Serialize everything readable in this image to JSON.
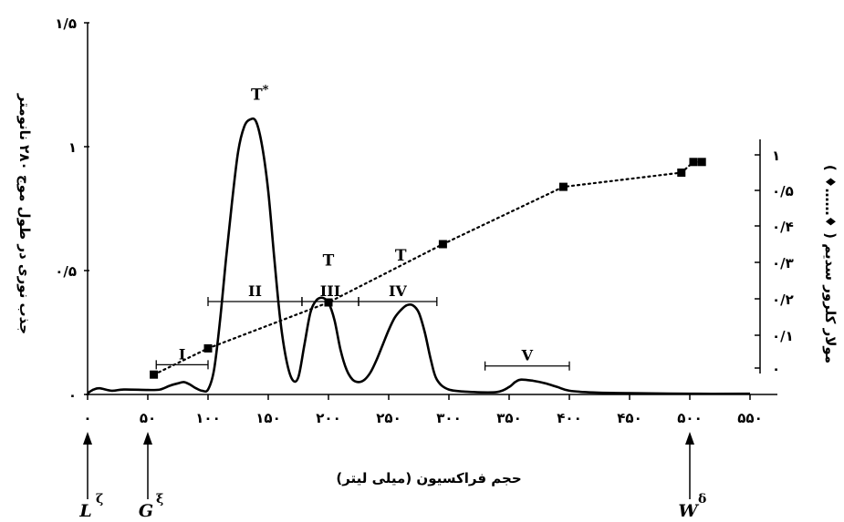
{
  "chart_data": {
    "type": "line",
    "xlabel": "حجم فراکسیون (میلی لیتر)",
    "ylabel": "جذب نوری در طول موج ۲۸۰ نانومتر",
    "y2label": "مولار کلرور سدیم ( ♦……♦ )",
    "xlim": [
      0,
      550
    ],
    "ylim": [
      0,
      1.5
    ],
    "y2lim": [
      0,
      1
    ],
    "x_ticks": [
      0,
      50,
      100,
      150,
      200,
      250,
      300,
      350,
      400,
      450,
      500,
      550
    ],
    "x_tick_labels": [
      "۰",
      "۵۰",
      "۱۰۰",
      "۱۵۰",
      "۲۰۰",
      "۲۵۰",
      "۳۰۰",
      "۳۵۰",
      "۴۰۰",
      "۴۵۰",
      "۵۰۰",
      "۵۵۰"
    ],
    "y_ticks": [
      0,
      0.5,
      1,
      1.5
    ],
    "y_tick_labels": [
      "۰",
      "۰/۵",
      "۱",
      "۱/۵"
    ],
    "y2_ticks": [
      0,
      0.1,
      0.2,
      0.3,
      0.4,
      0.5,
      1
    ],
    "y2_tick_labels": [
      "۰",
      "۰/۱",
      "۰/۲",
      "۰/۳",
      "۰/۴",
      "۰/۵",
      "۱"
    ],
    "grid": false,
    "legend": "none",
    "series": [
      {
        "id": "absorbance",
        "style": "solid",
        "color": "#000000",
        "axis": "left",
        "x": [
          0,
          5,
          10,
          20,
          30,
          50,
          60,
          68,
          75,
          80,
          85,
          90,
          95,
          100,
          105,
          110,
          115,
          120,
          125,
          130,
          135,
          140,
          145,
          150,
          155,
          160,
          165,
          170,
          175,
          180,
          185,
          190,
          195,
          200,
          205,
          210,
          215,
          220,
          225,
          230,
          235,
          240,
          245,
          250,
          255,
          260,
          265,
          270,
          275,
          280,
          285,
          290,
          300,
          320,
          340,
          350,
          355,
          360,
          370,
          380,
          390,
          400,
          420,
          450,
          500,
          550
        ],
        "y": [
          0.005,
          0.02,
          0.025,
          0.015,
          0.02,
          0.018,
          0.02,
          0.035,
          0.045,
          0.05,
          0.04,
          0.025,
          0.015,
          0.02,
          0.1,
          0.3,
          0.55,
          0.78,
          0.98,
          1.08,
          1.11,
          1.1,
          1.0,
          0.82,
          0.55,
          0.3,
          0.14,
          0.06,
          0.07,
          0.2,
          0.33,
          0.38,
          0.39,
          0.37,
          0.3,
          0.18,
          0.1,
          0.06,
          0.05,
          0.06,
          0.09,
          0.14,
          0.2,
          0.26,
          0.31,
          0.34,
          0.36,
          0.36,
          0.33,
          0.25,
          0.14,
          0.06,
          0.02,
          0.01,
          0.01,
          0.03,
          0.05,
          0.06,
          0.055,
          0.045,
          0.03,
          0.015,
          0.008,
          0.005,
          0.003,
          0.003
        ]
      },
      {
        "id": "nacl",
        "style": "dotted",
        "color": "#000000",
        "axis": "right",
        "marker": "square",
        "x": [
          55,
          100,
          200,
          295,
          395,
          493,
          503,
          510
        ],
        "y": [
          -0.02,
          0.06,
          0.19,
          0.35,
          0.55,
          0.75,
          0.9,
          0.9
        ]
      }
    ],
    "fraction_bars": [
      {
        "label": "I",
        "x_start": 57,
        "x_end": 100,
        "y": 0.12
      },
      {
        "label": "II",
        "x_start": 100,
        "x_end": 178,
        "y": 0.375
      },
      {
        "label": "III",
        "x_start": 178,
        "x_end": 225,
        "y": 0.375
      },
      {
        "label": "IV",
        "x_start": 225,
        "x_end": 290,
        "y": 0.375
      },
      {
        "label": "V",
        "x_start": 330,
        "x_end": 400,
        "y": 0.115
      }
    ],
    "peak_labels": [
      {
        "text": "T",
        "superscript": "*",
        "x": 143,
        "y": 1.19
      },
      {
        "text": "T",
        "superscript": "",
        "x": 200,
        "y": 0.52
      },
      {
        "text": "T",
        "superscript": "",
        "x": 260,
        "y": 0.54
      }
    ],
    "arrows": [
      {
        "letter": "L",
        "superscript": "ζ",
        "x": 0
      },
      {
        "letter": "G",
        "superscript": "ξ",
        "x": 50
      },
      {
        "letter": "W",
        "superscript": "δ",
        "x": 500
      }
    ]
  }
}
